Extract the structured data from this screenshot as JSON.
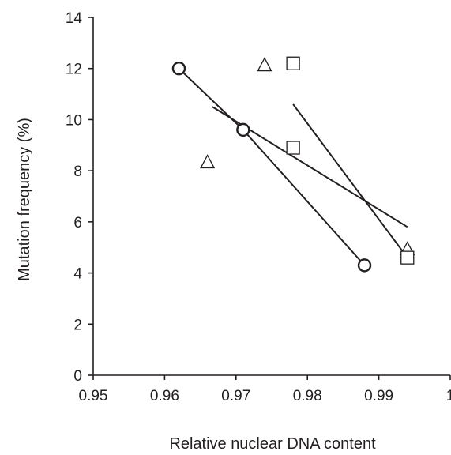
{
  "chart_data": {
    "type": "scatter",
    "xlabel": "Relative nuclear DNA content",
    "ylabel": "Mutation frequency (%)",
    "xlim": [
      0.95,
      1.0
    ],
    "ylim": [
      0,
      14
    ],
    "x_ticks": [
      "0.95",
      "0.96",
      "0.97",
      "0.98",
      "0.99",
      "1"
    ],
    "y_ticks": [
      "0",
      "2",
      "4",
      "6",
      "8",
      "10",
      "12",
      "14"
    ],
    "grid": false,
    "legend": "none",
    "series": [
      {
        "marker": "circle",
        "connected": true,
        "points": [
          [
            0.962,
            12.0
          ],
          [
            0.971,
            9.6
          ],
          [
            0.988,
            4.3
          ]
        ]
      },
      {
        "marker": "triangle",
        "connected": false,
        "points": [
          [
            0.966,
            8.3
          ],
          [
            0.974,
            12.1
          ],
          [
            0.994,
            4.9
          ]
        ],
        "fit_line": [
          [
            0.9667,
            10.5
          ],
          [
            0.994,
            5.8
          ]
        ]
      },
      {
        "marker": "square",
        "connected": false,
        "points": [
          [
            0.978,
            12.2
          ],
          [
            0.978,
            8.9
          ],
          [
            0.994,
            4.6
          ]
        ],
        "fit_line": [
          [
            0.978,
            10.6
          ],
          [
            0.994,
            4.6
          ]
        ]
      }
    ],
    "colors": {
      "ink": "#231f20",
      "background": "#ffffff"
    }
  }
}
